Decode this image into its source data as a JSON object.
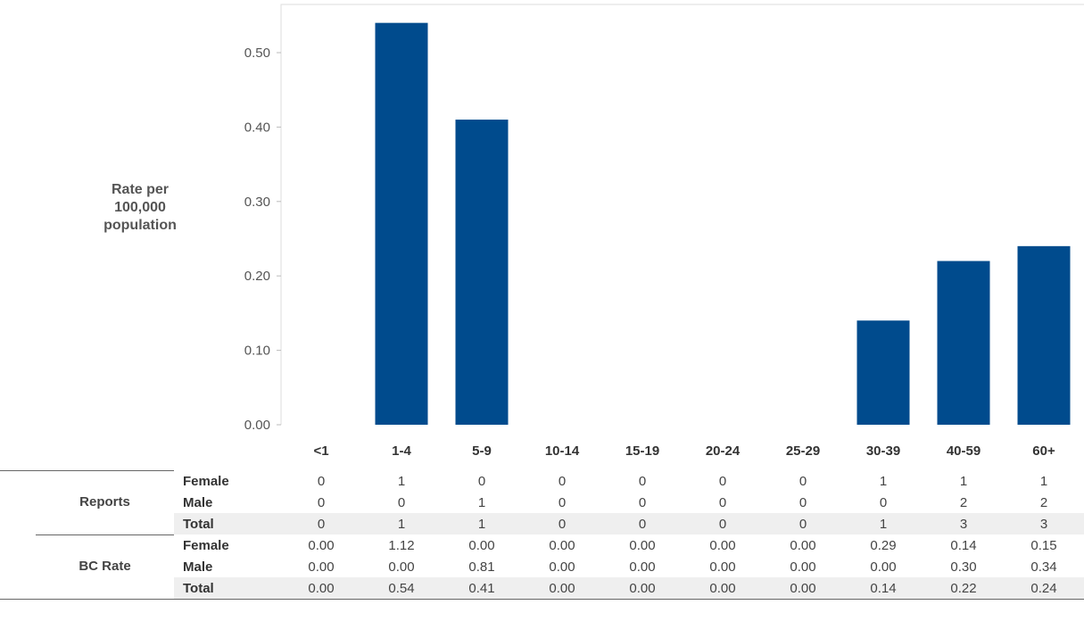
{
  "chart_data": {
    "type": "bar",
    "ylabel_lines": [
      "Rate per",
      "100,000",
      "population"
    ],
    "categories": [
      "<1",
      "1-4",
      "5-9",
      "10-14",
      "15-19",
      "20-24",
      "25-29",
      "30-39",
      "40-59",
      "60+"
    ],
    "values": [
      0.0,
      0.54,
      0.41,
      0.0,
      0.0,
      0.0,
      0.0,
      0.14,
      0.22,
      0.24
    ],
    "ylim": [
      0,
      0.55
    ],
    "yticks": [
      "0.00",
      "0.10",
      "0.20",
      "0.30",
      "0.40",
      "0.50"
    ],
    "bar_color": "#004b8d",
    "grid": false
  },
  "table": {
    "groups": [
      {
        "label": "Reports",
        "rows": [
          {
            "label": "Female",
            "values": [
              "0",
              "1",
              "0",
              "0",
              "0",
              "0",
              "0",
              "1",
              "1",
              "1"
            ]
          },
          {
            "label": "Male",
            "values": [
              "0",
              "0",
              "1",
              "0",
              "0",
              "0",
              "0",
              "0",
              "2",
              "2"
            ]
          },
          {
            "label": "Total",
            "values": [
              "0",
              "1",
              "1",
              "0",
              "0",
              "0",
              "0",
              "1",
              "3",
              "3"
            ]
          }
        ]
      },
      {
        "label": "BC Rate",
        "rows": [
          {
            "label": "Female",
            "values": [
              "0.00",
              "1.12",
              "0.00",
              "0.00",
              "0.00",
              "0.00",
              "0.00",
              "0.29",
              "0.14",
              "0.15"
            ]
          },
          {
            "label": "Male",
            "values": [
              "0.00",
              "0.00",
              "0.81",
              "0.00",
              "0.00",
              "0.00",
              "0.00",
              "0.00",
              "0.30",
              "0.34"
            ]
          },
          {
            "label": "Total",
            "values": [
              "0.00",
              "0.54",
              "0.41",
              "0.00",
              "0.00",
              "0.00",
              "0.00",
              "0.14",
              "0.22",
              "0.24"
            ]
          }
        ]
      }
    ]
  }
}
